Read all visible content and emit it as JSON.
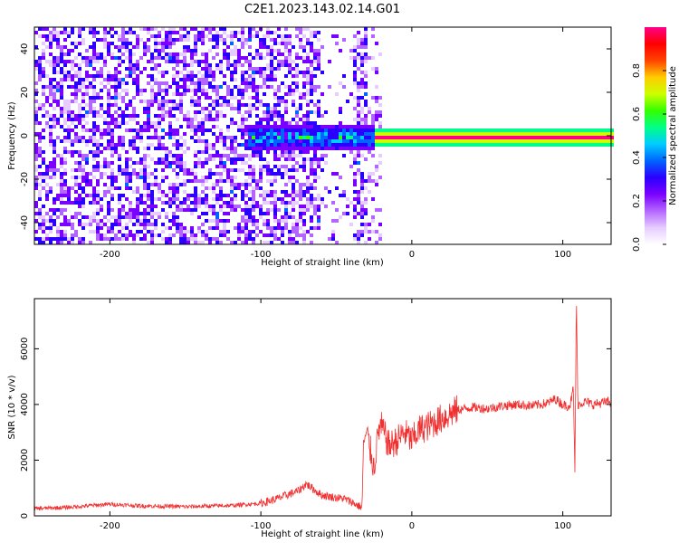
{
  "title": "C2E1.2023.143.02.14.G01",
  "colors": {
    "snr_line": "#f03030",
    "axis": "#000000",
    "colormap": [
      "#ffffff",
      "#e6ccff",
      "#b366ff",
      "#7a00ff",
      "#2a00ff",
      "#0066ff",
      "#00ccff",
      "#00ff88",
      "#33ff00",
      "#ccff00",
      "#ffcc00",
      "#ff4400",
      "#ff0000",
      "#ff0088"
    ]
  },
  "chart_data": [
    {
      "type": "heatmap",
      "xlabel": "Height of straight line (km)",
      "ylabel": "Frequency (Hz)",
      "xlim": [
        -250,
        132
      ],
      "ylim": [
        -50,
        50
      ],
      "xticks": [
        -200,
        -100,
        0,
        100
      ],
      "yticks": [
        40,
        20,
        0,
        -20,
        -40
      ],
      "colorbar": {
        "label": "Normalized spectral amplitude",
        "range": [
          0,
          1
        ],
        "ticks": [
          "0.0",
          "0.2",
          "0.4",
          "0.6",
          "0.8"
        ]
      }
    },
    {
      "type": "line",
      "xlabel": "Height of straight line (km)",
      "ylabel": "SNR (10 * v/v)",
      "xlim": [
        -250,
        132
      ],
      "ylim": [
        0,
        7800
      ],
      "xticks": [
        -200,
        -100,
        0,
        100
      ],
      "yticks": [
        0,
        2000,
        4000,
        6000
      ],
      "series": [
        {
          "x": [
            -250,
            -230,
            -210,
            -200,
            -180,
            -150,
            -120,
            -100,
            -90,
            -75,
            -70,
            -60,
            -50,
            -45,
            -40,
            -36,
            -33,
            -32,
            -30,
            -28,
            -25,
            -22,
            -20,
            -15,
            -10,
            -5,
            0,
            5,
            10,
            15,
            20,
            30,
            40,
            50,
            60,
            70,
            80,
            90,
            95,
            100,
            103,
            105,
            107,
            108,
            109,
            110,
            112,
            115,
            120,
            125,
            130
          ],
          "values": [
            260,
            300,
            380,
            420,
            360,
            330,
            370,
            450,
            600,
            900,
            1150,
            750,
            650,
            620,
            500,
            380,
            300,
            2600,
            3000,
            2500,
            1700,
            3100,
            3200,
            2500,
            2700,
            3000,
            2700,
            3100,
            3200,
            3350,
            3500,
            3800,
            3900,
            3850,
            3950,
            4000,
            3950,
            4050,
            4200,
            4000,
            3950,
            4000,
            4600,
            1600,
            7800,
            4000,
            4050,
            4100,
            4000,
            4050,
            4100
          ]
        }
      ]
    }
  ]
}
